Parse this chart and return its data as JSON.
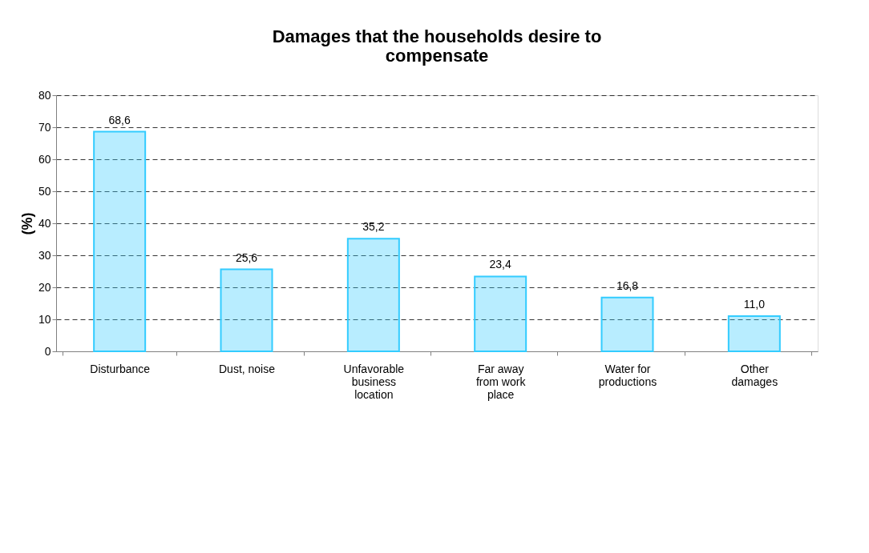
{
  "chart_data": {
    "type": "bar",
    "title": "Damages that the households desire to compensate",
    "ylabel": "(%)",
    "categories": [
      "Disturbance",
      "Dust, noise",
      "Unfavorable business location",
      "Far away from work place",
      "Water for productions",
      "Other damages"
    ],
    "values": [
      68.6,
      25.6,
      35.2,
      23.4,
      16.8,
      11.0
    ],
    "value_labels": [
      "68,6",
      "25,6",
      "35,2",
      "23,4",
      "16,8",
      "11,0"
    ],
    "color": "#33ccff",
    "ylim": [
      0,
      80
    ],
    "yticks": [
      0,
      10,
      20,
      30,
      40,
      50,
      60,
      70,
      80
    ],
    "grid": "y"
  }
}
